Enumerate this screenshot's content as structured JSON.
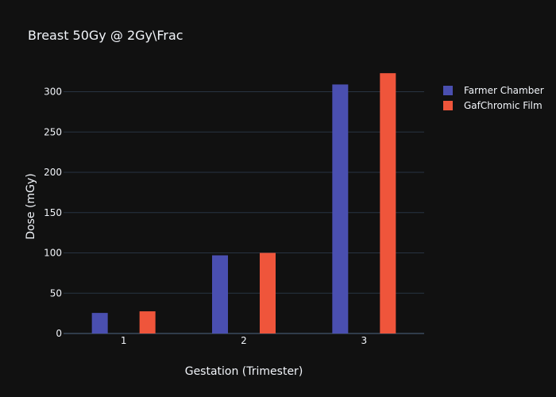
{
  "chart_data": {
    "type": "bar",
    "title": "Breast 50Gy @ 2Gy\\Frac",
    "xlabel": "Gestation (Trimester)",
    "ylabel": "Dose (mGy)",
    "categories": [
      "1",
      "2",
      "3"
    ],
    "ylim": [
      0,
      335
    ],
    "yticks": [
      0,
      50,
      100,
      150,
      200,
      250,
      300
    ],
    "grid": true,
    "legend_position": "top-right",
    "series": [
      {
        "name": "Farmer Chamber",
        "values": [
          25.5,
          97,
          309
        ],
        "color": "#4a4fb0"
      },
      {
        "name": "GafChromic Film",
        "values": [
          27.5,
          100,
          323
        ],
        "color": "#ef553b"
      }
    ]
  }
}
